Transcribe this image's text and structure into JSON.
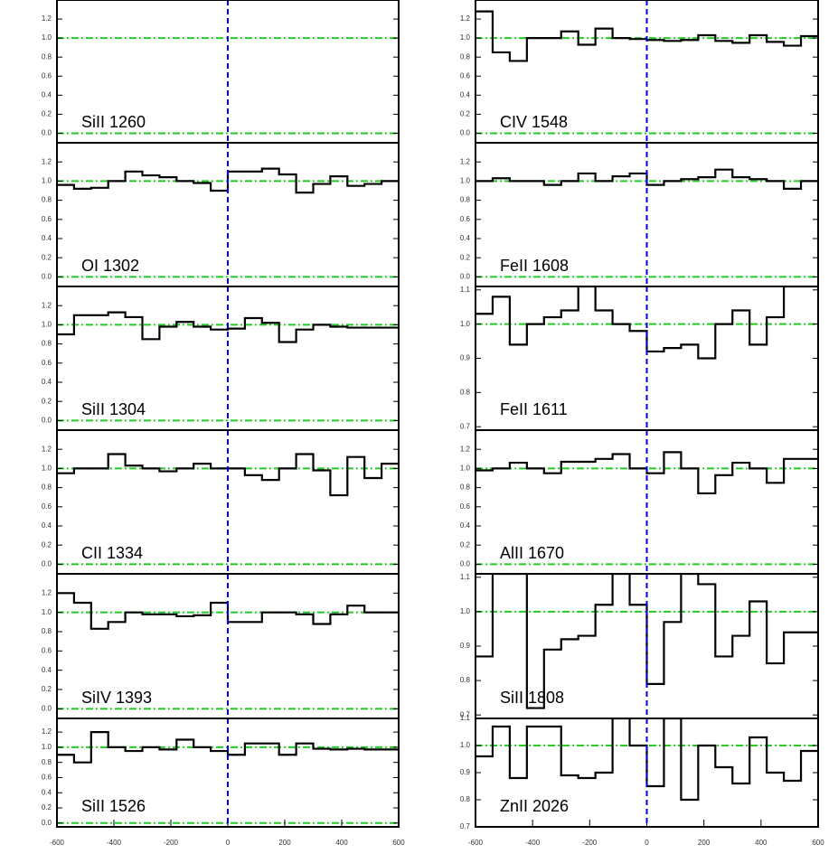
{
  "chart_data": [
    {
      "type": "step",
      "label": "SiII 1260",
      "x": [
        -570,
        -510,
        -450,
        -390,
        -330,
        -270,
        -210,
        -150,
        -90,
        -30,
        30,
        90,
        150,
        210,
        270,
        330,
        390,
        450,
        510,
        570
      ],
      "values": [
        null,
        null,
        null,
        null,
        null,
        null,
        null,
        null,
        null,
        null,
        null,
        null,
        null,
        null,
        null,
        null,
        null,
        null,
        null,
        null
      ],
      "xlim": [
        -600,
        600
      ],
      "ylim": [
        -0.1,
        1.4
      ],
      "yticks": [
        {
          "value": 0,
          "label": "0.0"
        },
        0.2,
        0.4,
        0.6,
        0.8,
        {
          "value": 1,
          "label": "1.0"
        },
        1.2
      ],
      "reference_lines": [
        0,
        1
      ],
      "vline": 0,
      "color": "#000000"
    },
    {
      "type": "step",
      "label": "OI 1302",
      "x": [
        -570,
        -510,
        -450,
        -390,
        -330,
        -270,
        -210,
        -150,
        -90,
        -30,
        30,
        90,
        150,
        210,
        270,
        330,
        390,
        450,
        510,
        570
      ],
      "values": [
        0.96,
        0.92,
        0.93,
        1.0,
        1.1,
        1.06,
        1.04,
        1.0,
        0.98,
        0.9,
        1.1,
        1.1,
        1.13,
        1.07,
        0.88,
        0.97,
        1.05,
        0.95,
        0.97,
        1.0
      ],
      "xlim": [
        -600,
        600
      ],
      "ylim": [
        -0.1,
        1.4
      ],
      "yticks": [
        {
          "value": 0,
          "label": "0.0"
        },
        0.2,
        0.4,
        0.6,
        0.8,
        {
          "value": 1,
          "label": "1.0"
        },
        1.2
      ],
      "reference_lines": [
        0,
        1
      ],
      "vline": 0,
      "color": "#000000"
    },
    {
      "type": "step",
      "label": "SiII 1304",
      "x": [
        -570,
        -510,
        -450,
        -390,
        -330,
        -270,
        -210,
        -150,
        -90,
        -30,
        30,
        90,
        150,
        210,
        270,
        330,
        390,
        450,
        510,
        570
      ],
      "values": [
        0.9,
        1.1,
        1.1,
        1.13,
        1.08,
        0.85,
        0.98,
        1.03,
        0.98,
        0.95,
        0.96,
        1.07,
        1.02,
        0.82,
        0.95,
        1.0,
        0.98,
        0.97,
        0.97,
        0.97
      ],
      "xlim": [
        -600,
        600
      ],
      "ylim": [
        -0.1,
        1.4
      ],
      "yticks": [
        {
          "value": 0,
          "label": "0.0"
        },
        0.2,
        0.4,
        0.6,
        0.8,
        {
          "value": 1,
          "label": "1.0"
        },
        1.2
      ],
      "reference_lines": [
        0,
        1
      ],
      "vline": 0,
      "color": "#000000"
    },
    {
      "type": "step",
      "label": "CII 1334",
      "x": [
        -570,
        -510,
        -450,
        -390,
        -330,
        -270,
        -210,
        -150,
        -90,
        -30,
        30,
        90,
        150,
        210,
        270,
        330,
        390,
        450,
        510,
        570
      ],
      "values": [
        0.95,
        1.0,
        1.0,
        1.15,
        1.03,
        1.0,
        0.97,
        1.0,
        1.05,
        1.0,
        1.0,
        0.93,
        0.88,
        1.0,
        1.15,
        0.98,
        0.72,
        1.12,
        0.9,
        1.05
      ],
      "xlim": [
        -600,
        600
      ],
      "ylim": [
        -0.1,
        1.4
      ],
      "yticks": [
        {
          "value": 0,
          "label": "0.0"
        },
        0.2,
        0.4,
        0.6,
        0.8,
        {
          "value": 1,
          "label": "1.0"
        },
        1.2
      ],
      "reference_lines": [
        0,
        1
      ],
      "vline": 0,
      "color": "#000000"
    },
    {
      "type": "step",
      "label": "SiIV 1393",
      "x": [
        -570,
        -510,
        -450,
        -390,
        -330,
        -270,
        -210,
        -150,
        -90,
        -30,
        30,
        90,
        150,
        210,
        270,
        330,
        390,
        450,
        510,
        570
      ],
      "values": [
        1.2,
        1.1,
        0.83,
        0.9,
        1.0,
        0.98,
        0.98,
        0.96,
        0.97,
        1.1,
        0.9,
        0.9,
        1.0,
        1.0,
        0.98,
        0.88,
        0.98,
        1.07,
        1.0,
        1.0
      ],
      "xlim": [
        -600,
        600
      ],
      "ylim": [
        -0.1,
        1.4
      ],
      "yticks": [
        {
          "value": 0,
          "label": "0.0"
        },
        0.2,
        0.4,
        0.6,
        0.8,
        {
          "value": 1,
          "label": "1.0"
        },
        1.2
      ],
      "reference_lines": [
        0,
        1
      ],
      "vline": 0,
      "color": "#000000"
    },
    {
      "type": "step",
      "label": "SiII 1526",
      "x": [
        -570,
        -510,
        -450,
        -390,
        -330,
        -270,
        -210,
        -150,
        -90,
        -30,
        30,
        90,
        150,
        210,
        270,
        330,
        390,
        450,
        510,
        570
      ],
      "values": [
        0.9,
        0.8,
        1.2,
        1.0,
        0.95,
        1.0,
        0.97,
        1.1,
        1.0,
        0.95,
        0.9,
        1.05,
        1.05,
        0.9,
        1.05,
        0.98,
        0.97,
        0.98,
        0.97,
        0.97
      ],
      "xlim": [
        -600,
        600
      ],
      "xticks": [
        -600,
        -400,
        -200,
        0,
        200,
        400,
        600
      ],
      "ylim": [
        -0.05,
        1.38
      ],
      "yticks": [
        {
          "value": 0,
          "label": "0.0"
        },
        0.2,
        0.4,
        0.6,
        0.8,
        {
          "value": 1,
          "label": "1.0"
        },
        1.2
      ],
      "reference_lines": [
        0,
        1
      ],
      "vline": 0,
      "color": "#000000"
    },
    {
      "type": "step",
      "label": "CIV 1548",
      "x": [
        -570,
        -510,
        -450,
        -390,
        -330,
        -270,
        -210,
        -150,
        -90,
        -30,
        30,
        90,
        150,
        210,
        270,
        330,
        390,
        450,
        510,
        570
      ],
      "values": [
        1.28,
        0.85,
        0.76,
        1.0,
        1.0,
        1.07,
        0.93,
        1.1,
        1.0,
        0.99,
        0.98,
        0.97,
        0.98,
        1.03,
        0.97,
        0.95,
        1.03,
        0.96,
        0.92,
        1.02
      ],
      "xlim": [
        -600,
        600
      ],
      "ylim": [
        -0.1,
        1.4
      ],
      "yticks": [
        {
          "value": 0,
          "label": "0.0"
        },
        0.2,
        0.4,
        0.6,
        0.8,
        {
          "value": 1,
          "label": "1.0"
        },
        1.2
      ],
      "reference_lines": [
        0,
        1
      ],
      "vline": 0,
      "color": "#000000"
    },
    {
      "type": "step",
      "label": "FeII 1608",
      "x": [
        -570,
        -510,
        -450,
        -390,
        -330,
        -270,
        -210,
        -150,
        -90,
        -30,
        30,
        90,
        150,
        210,
        270,
        330,
        390,
        450,
        510,
        570
      ],
      "values": [
        1.0,
        1.03,
        1.0,
        1.0,
        0.96,
        1.0,
        1.08,
        1.0,
        1.05,
        1.08,
        0.96,
        1.0,
        1.02,
        1.04,
        1.12,
        1.04,
        1.02,
        1.0,
        0.92,
        1.0
      ],
      "xlim": [
        -600,
        600
      ],
      "ylim": [
        -0.1,
        1.4
      ],
      "yticks": [
        {
          "value": 0,
          "label": "0.0"
        },
        0.2,
        0.4,
        0.6,
        0.8,
        {
          "value": 1,
          "label": "1.0"
        },
        1.2
      ],
      "reference_lines": [
        0,
        1
      ],
      "vline": 0,
      "color": "#000000"
    },
    {
      "type": "step",
      "label": "FeII 1611",
      "x": [
        -570,
        -510,
        -450,
        -390,
        -330,
        -270,
        -210,
        -150,
        -90,
        -30,
        30,
        90,
        150,
        210,
        270,
        330,
        390,
        450,
        510,
        570
      ],
      "values": [
        1.03,
        1.08,
        0.94,
        1.0,
        1.02,
        1.04,
        1.11,
        1.04,
        1.0,
        0.98,
        0.92,
        0.93,
        0.94,
        0.9,
        1.0,
        1.04,
        0.94,
        1.02,
        1.11,
        1.11
      ],
      "xlim": [
        -600,
        600
      ],
      "ylim": [
        0.69,
        1.11
      ],
      "yticks": [
        0.7,
        0.8,
        0.9,
        {
          "value": 1,
          "label": "1.0"
        },
        1.1
      ],
      "reference_lines": [
        1
      ],
      "vline": 0,
      "color": "#000000"
    },
    {
      "type": "step",
      "label": "AlII 1670",
      "x": [
        -570,
        -510,
        -450,
        -390,
        -330,
        -270,
        -210,
        -150,
        -90,
        -30,
        30,
        90,
        150,
        210,
        270,
        330,
        390,
        450,
        510,
        570
      ],
      "values": [
        0.98,
        1.0,
        1.06,
        1.0,
        0.95,
        1.07,
        1.07,
        1.1,
        1.15,
        1.0,
        0.95,
        1.17,
        1.0,
        0.74,
        0.93,
        1.06,
        1.0,
        0.85,
        1.1,
        1.1
      ],
      "xlim": [
        -600,
        600
      ],
      "ylim": [
        -0.1,
        1.4
      ],
      "yticks": [
        {
          "value": 0,
          "label": "0.0"
        },
        0.2,
        0.4,
        0.6,
        0.8,
        {
          "value": 1,
          "label": "1.0"
        },
        1.2
      ],
      "reference_lines": [
        0,
        1
      ],
      "vline": 0,
      "color": "#000000"
    },
    {
      "type": "step",
      "label": "SiII 1808",
      "x": [
        -570,
        -510,
        -450,
        -390,
        -330,
        -270,
        -210,
        -150,
        -90,
        -30,
        30,
        90,
        150,
        210,
        270,
        330,
        390,
        450,
        510,
        570
      ],
      "values": [
        0.87,
        1.11,
        1.11,
        0.72,
        0.89,
        0.92,
        0.93,
        1.02,
        1.11,
        1.02,
        0.79,
        0.97,
        1.11,
        1.08,
        0.87,
        0.93,
        1.03,
        0.85,
        0.94,
        0.94
      ],
      "xlim": [
        -600,
        600
      ],
      "ylim": [
        0.69,
        1.11
      ],
      "yticks": [
        0.7,
        0.8,
        0.9,
        {
          "value": 1,
          "label": "1.0"
        },
        1.1
      ],
      "reference_lines": [
        1
      ],
      "vline": 0,
      "color": "#000000"
    },
    {
      "type": "step",
      "label": "ZnII 2026",
      "x": [
        -570,
        -510,
        -450,
        -390,
        -330,
        -270,
        -210,
        -150,
        -90,
        -30,
        30,
        90,
        150,
        210,
        270,
        330,
        390,
        450,
        510,
        570
      ],
      "values": [
        0.96,
        1.07,
        0.88,
        1.07,
        1.07,
        0.89,
        0.88,
        0.9,
        1.1,
        1.0,
        0.85,
        1.1,
        0.8,
        1.0,
        0.92,
        0.86,
        1.03,
        0.9,
        0.87,
        0.98
      ],
      "xlim": [
        -600,
        600
      ],
      "xticks": [
        -600,
        -400,
        -200,
        0,
        200,
        400,
        600
      ],
      "ylim": [
        0.7,
        1.1
      ],
      "yticks": [
        0.7,
        0.8,
        0.9,
        {
          "value": 1,
          "label": "1.0"
        },
        1.1
      ],
      "reference_lines": [
        1
      ],
      "vline": 0,
      "color": "#000000"
    }
  ]
}
